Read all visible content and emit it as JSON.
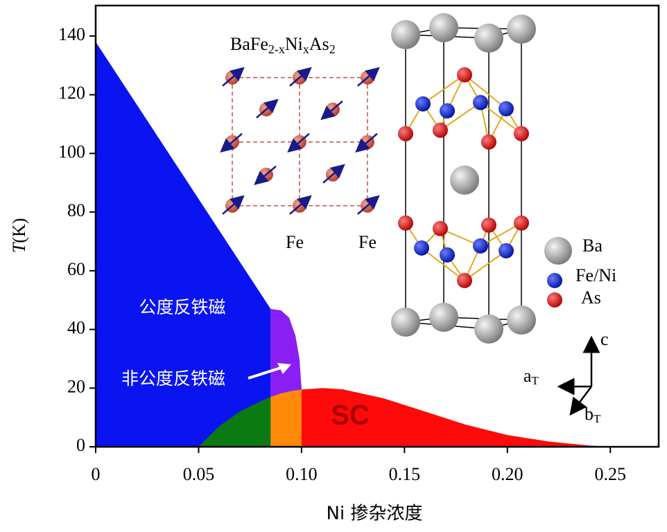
{
  "chart_data": {
    "type": "area",
    "xlabel": "Ni 掺杂浓度",
    "ylabel_parts": [
      "T",
      "(K)"
    ],
    "xlim": [
      0,
      0.2735
    ],
    "ylim": [
      0,
      150.4
    ],
    "xticks": [
      0,
      0.05,
      {
        "value": 0.1,
        "label": "0.10"
      },
      0.15,
      {
        "value": 0.2,
        "label": "0.20"
      },
      0.25
    ],
    "yticks": [
      0,
      20,
      40,
      60,
      80,
      100,
      120,
      140
    ],
    "series": [
      {
        "color": "#0a14f0",
        "x": [
          0,
          0.085
        ],
        "values": [
          138,
          47
        ]
      },
      {
        "color": "#8a1ff5",
        "x": [
          0.085,
          0.09,
          0.094,
          0.097,
          0.099,
          0.1
        ],
        "values": [
          47,
          46.5,
          44,
          38,
          30,
          20
        ]
      },
      {
        "color": "#ff0a0a",
        "x": [
          0.1,
          0.11,
          0.12,
          0.14,
          0.16,
          0.18,
          0.2,
          0.22,
          0.24,
          0.25
        ],
        "values": [
          19.5,
          20,
          19.6,
          16.5,
          12,
          7.5,
          4,
          1.8,
          0.4,
          0
        ]
      },
      {
        "color": "#0c7a12",
        "x": [
          0.05,
          0.06,
          0.07,
          0.08,
          0.085
        ],
        "values": [
          0,
          7,
          12,
          15.5,
          17
        ]
      },
      {
        "color": "#ff8a0a",
        "x": [
          0.085,
          0.09,
          0.095,
          0.1
        ],
        "values": [
          17,
          18.2,
          19,
          19.5
        ]
      }
    ],
    "annotations": [
      "公度反铁磁",
      "非公度反铁磁",
      "SC"
    ],
    "inset": {
      "formula": [
        "BaFe",
        "2-x",
        "Ni",
        "x",
        "As",
        "2"
      ],
      "site_labels": [
        "Fe",
        "Fe"
      ],
      "legend": [
        "Ba",
        "Fe/Ni",
        "As"
      ],
      "axes": {
        "c": "c",
        "a": [
          "a",
          "T"
        ],
        "b": [
          "b",
          "T"
        ]
      }
    }
  }
}
